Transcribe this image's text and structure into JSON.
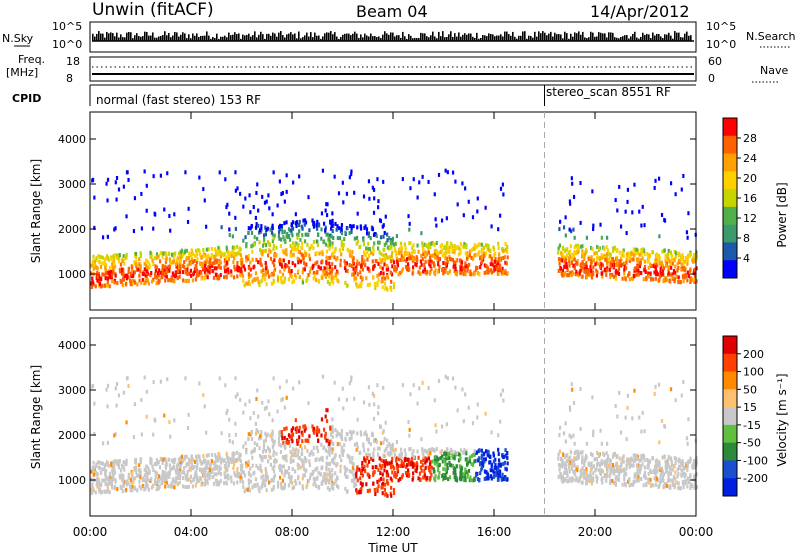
{
  "header": {
    "station": "Unwin (fitACF)",
    "beam": "Beam 04",
    "date": "14/Apr/2012"
  },
  "strips": {
    "sky_label": "N.Sky",
    "search_label": "N.Search",
    "sky_ticks": [
      "10^5",
      "10^0"
    ],
    "search_ticks": [
      "10^5",
      "10^0"
    ],
    "freq_label_1": "Freq.",
    "freq_label_2": "[MHz]",
    "freq_ticks": [
      "18",
      "8"
    ],
    "nave_label": "Nave",
    "nave_ticks": [
      "60",
      "0"
    ],
    "cpid_label": "CPID",
    "cpid_segments": [
      {
        "text": "normal (fast stereo) 153 RF",
        "start_hour": 0
      },
      {
        "text": "stereo_scan 8551 RF",
        "start_hour": 18
      }
    ]
  },
  "chart_data": [
    {
      "type": "heatmap",
      "parameter": "Power",
      "ylabel": "Slant Range [km]",
      "xlabel": "Time UT",
      "x_ticks": [
        "00:00",
        "04:00",
        "08:00",
        "12:00",
        "16:00",
        "20:00",
        "00:00"
      ],
      "x_range_hours": [
        0,
        24
      ],
      "y_ticks": [
        1000,
        2000,
        3000,
        4000
      ],
      "ylim": [
        200,
        4600
      ],
      "colorbar": {
        "label": "Power [dB]",
        "ticks": [
          "4",
          "8",
          "12",
          "16",
          "20",
          "24",
          "28"
        ],
        "range": [
          0,
          32
        ],
        "colors": [
          "#0000ff",
          "#1b5aa8",
          "#3a9a6a",
          "#4fb04a",
          "#c8d400",
          "#ffd000",
          "#ffa000",
          "#ff6000",
          "#ff0000"
        ]
      },
      "mode_change_hour": 18
    },
    {
      "type": "heatmap",
      "parameter": "Velocity",
      "ylabel": "Slant Range [km]",
      "xlabel": "Time UT",
      "x_ticks": [
        "00:00",
        "04:00",
        "08:00",
        "12:00",
        "16:00",
        "20:00",
        "00:00"
      ],
      "x_range_hours": [
        0,
        24
      ],
      "y_ticks": [
        1000,
        2000,
        3000,
        4000
      ],
      "ylim": [
        200,
        4600
      ],
      "colorbar": {
        "label": "Velocity [m s⁻¹]",
        "ticks": [
          "200",
          "100",
          "50",
          "15",
          "-15",
          "-50",
          "-100",
          "-200"
        ],
        "colors": [
          "#0020e0",
          "#1a4fd0",
          "#2a8a3a",
          "#5fc040",
          "#c8c8c8",
          "#ffc070",
          "#ff8a00",
          "#ff4000",
          "#e00000"
        ]
      },
      "mode_change_hour": 18
    }
  ]
}
